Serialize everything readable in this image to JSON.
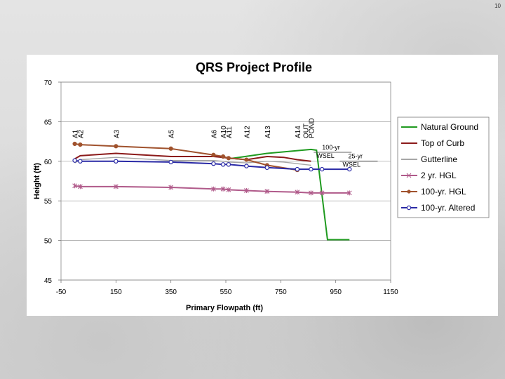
{
  "slide_number": "10",
  "chart_data": {
    "type": "line",
    "title": "QRS Project Profile",
    "xlabel": "Primary Flowpath (ft)",
    "ylabel": "Height (ft)",
    "xlim": [
      -50,
      1150
    ],
    "ylim": [
      45,
      70
    ],
    "x_ticks": [
      "-50",
      "150",
      "350",
      "550",
      "750",
      "950",
      "1150"
    ],
    "y_ticks": [
      "45",
      "50",
      "55",
      "60",
      "65",
      "70"
    ],
    "x_tick_values": [
      -50,
      150,
      350,
      550,
      750,
      950,
      1150
    ],
    "y_tick_values": [
      45,
      50,
      55,
      60,
      65,
      70
    ],
    "grid": "horizontal",
    "legend_position": "right",
    "station_labels": [
      {
        "text": "A1",
        "x": 0
      },
      {
        "text": "A2",
        "x": 20
      },
      {
        "text": "A3",
        "x": 150
      },
      {
        "text": "A5",
        "x": 350
      },
      {
        "text": "A6",
        "x": 505
      },
      {
        "text": "A10",
        "x": 540
      },
      {
        "text": "A11",
        "x": 560
      },
      {
        "text": "A12",
        "x": 625
      },
      {
        "text": "A13",
        "x": 700
      },
      {
        "text": "A14",
        "x": 810
      },
      {
        "text": "OUT",
        "x": 840
      },
      {
        "text": "POND",
        "x": 860
      }
    ],
    "annotations": [
      {
        "lines": [
          "100-yr",
          "WSEL"
        ],
        "x": 880,
        "y": 60.6
      },
      {
        "lines": [
          "25-yr",
          "WSEL"
        ],
        "x": 975,
        "y": 59.5
      }
    ],
    "series": [
      {
        "name": "Natural Ground",
        "color": "#1f9a1f",
        "marker": "none",
        "x": [
          560,
          700,
          860,
          880,
          920,
          935,
          1000
        ],
        "y": [
          60.3,
          61.0,
          61.5,
          61.4,
          50.1,
          50.1,
          50.1
        ]
      },
      {
        "name": "Top of Curb",
        "color": "#8b1a1a",
        "marker": "none",
        "x": [
          0,
          20,
          150,
          350,
          505,
          540,
          560,
          625,
          700,
          760,
          810,
          860
        ],
        "y": [
          60.3,
          60.7,
          61.0,
          60.6,
          60.6,
          60.5,
          60.4,
          60.2,
          60.6,
          60.5,
          60.2,
          60.0
        ]
      },
      {
        "name": "Gutterline",
        "color": "#a6a6a6",
        "marker": "none",
        "x": [
          0,
          20,
          150,
          350,
          505,
          540,
          560,
          625,
          700,
          760,
          810,
          860
        ],
        "y": [
          59.8,
          60.2,
          60.5,
          60.1,
          60.1,
          60.0,
          59.9,
          59.8,
          60.0,
          59.9,
          59.7,
          59.5
        ]
      },
      {
        "name": "2 yr. HGL",
        "color": "#b05a8a",
        "marker": "x",
        "x": [
          0,
          20,
          150,
          350,
          505,
          540,
          560,
          625,
          700,
          810,
          860,
          900,
          1000
        ],
        "y": [
          56.9,
          56.8,
          56.8,
          56.7,
          56.5,
          56.5,
          56.4,
          56.3,
          56.2,
          56.1,
          56.0,
          56.0,
          56.0
        ]
      },
      {
        "name": "100-yr. HGL",
        "color": "#a0522d",
        "marker": "dot",
        "x": [
          0,
          20,
          150,
          350,
          505,
          540,
          560,
          625,
          700,
          810
        ],
        "y": [
          62.2,
          62.1,
          61.9,
          61.6,
          60.8,
          60.6,
          60.4,
          60.2,
          59.5,
          58.9
        ]
      },
      {
        "name": "100-yr. Altered",
        "color": "#2a2aa6",
        "marker": "circle",
        "x": [
          0,
          20,
          150,
          350,
          505,
          540,
          560,
          625,
          700,
          810,
          860,
          900,
          1000
        ],
        "y": [
          60.1,
          60.0,
          60.0,
          59.9,
          59.7,
          59.6,
          59.6,
          59.4,
          59.2,
          59.0,
          59.0,
          59.0,
          59.0
        ]
      }
    ]
  }
}
